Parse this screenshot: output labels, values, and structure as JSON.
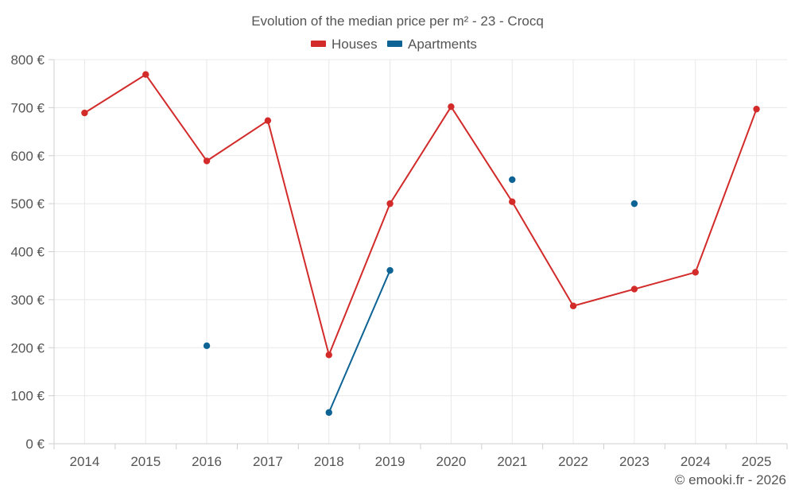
{
  "chart_data": {
    "type": "line",
    "title": "Evolution of the median price per m² - 23 - Crocq",
    "categories": [
      "2014",
      "2015",
      "2016",
      "2017",
      "2018",
      "2019",
      "2020",
      "2021",
      "2022",
      "2023",
      "2024",
      "2025"
    ],
    "y_ticks": [
      "0 €",
      "100 €",
      "200 €",
      "300 €",
      "400 €",
      "500 €",
      "600 €",
      "700 €",
      "800 €"
    ],
    "ylim": [
      0,
      800
    ],
    "y_step": 100,
    "grid": true,
    "legend_position": "top-center",
    "series": [
      {
        "name": "Houses",
        "color": "#d32a2a",
        "values": [
          689,
          769,
          589,
          673,
          185,
          500,
          702,
          504,
          287,
          322,
          357,
          697
        ]
      },
      {
        "name": "Apartments",
        "color": "#0d6394",
        "values": [
          null,
          null,
          204,
          null,
          65,
          361,
          null,
          550,
          null,
          500,
          null,
          null
        ]
      }
    ],
    "credit": "© emooki.fr - 2026"
  }
}
